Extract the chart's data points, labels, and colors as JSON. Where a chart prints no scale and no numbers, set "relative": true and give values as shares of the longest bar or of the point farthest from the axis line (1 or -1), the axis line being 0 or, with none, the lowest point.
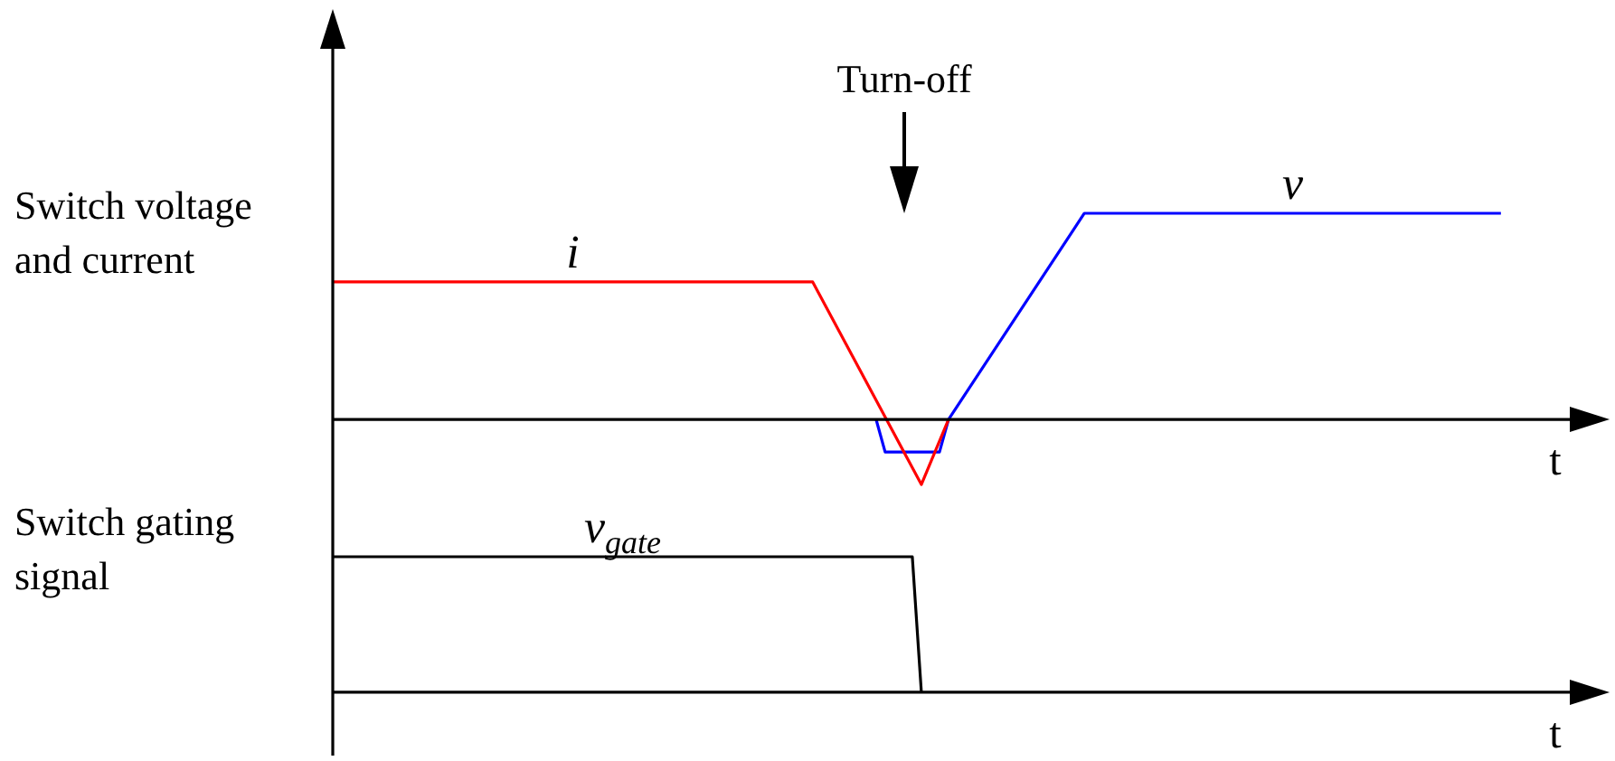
{
  "chart_data": [
    {
      "type": "line",
      "ylabel": "Switch voltage\nand current",
      "xlabel": "t",
      "annotations": [
        "Turn-off"
      ],
      "relative": true,
      "tick_labels": false,
      "grid": false,
      "legend": false,
      "marker": "none",
      "categories": [
        null,
        null,
        null,
        null,
        null,
        null,
        null,
        null,
        null,
        null,
        null,
        null,
        null,
        null,
        null,
        null,
        null,
        null,
        null,
        null,
        null,
        null,
        null,
        null,
        null,
        null,
        null,
        null,
        null,
        null,
        null,
        null,
        null,
        null,
        null,
        null,
        null,
        null,
        null,
        null,
        null,
        null,
        null,
        null,
        null,
        null,
        null,
        null,
        null,
        null,
        null,
        null,
        null,
        null,
        null,
        null,
        null,
        null,
        null,
        null,
        null,
        null,
        null,
        null,
        null,
        null,
        null,
        null,
        null,
        null,
        null,
        null,
        null,
        null,
        null,
        null,
        null,
        null,
        null,
        null,
        null,
        null,
        null,
        null,
        null,
        null,
        null,
        null,
        null,
        null,
        null,
        null,
        null,
        null,
        null,
        null,
        null,
        null,
        null,
        null,
        null,
        null,
        null,
        null,
        null,
        null,
        null,
        null,
        null,
        null,
        null,
        null,
        null,
        null,
        null,
        null,
        null,
        null,
        null,
        null,
        null,
        null,
        null,
        null,
        null,
        null,
        null,
        null,
        null,
        null,
        null,
        null,
        null,
        null,
        null,
        null,
        null,
        null,
        null,
        null,
        null,
        null
      ],
      "series": [
        {
          "name": "i",
          "color": "#ff0000",
          "values": [
            0.667,
            null,
            null,
            null,
            null,
            null,
            null,
            null,
            null,
            null,
            null,
            null,
            null,
            null,
            null,
            null,
            null,
            null,
            null,
            null,
            null,
            null,
            null,
            null,
            null,
            null,
            null,
            null,
            null,
            null,
            null,
            null,
            null,
            null,
            null,
            null,
            null,
            null,
            null,
            null,
            null,
            null,
            null,
            null,
            null,
            null,
            null,
            null,
            null,
            null,
            null,
            null,
            null,
            0.667,
            null,
            null,
            null,
            null,
            null,
            null,
            null,
            null,
            null,
            null,
            null,
            -0.316,
            null,
            null,
            0,
            null,
            null,
            null,
            null,
            null,
            null,
            null,
            null,
            null,
            null,
            null,
            null,
            null,
            null,
            null,
            null,
            null,
            null,
            null,
            null,
            null,
            null,
            null,
            null,
            null,
            null,
            null,
            null,
            null,
            null,
            null,
            null,
            null,
            null,
            null,
            null,
            null,
            null,
            null,
            null,
            null,
            null,
            null,
            null,
            null,
            null,
            null,
            null,
            null,
            null,
            null,
            null,
            null,
            null,
            null,
            null,
            null,
            null,
            null,
            null,
            null,
            null,
            null,
            null,
            null,
            null,
            null,
            null,
            null,
            null,
            null,
            null,
            null
          ]
        },
        {
          "name": "v",
          "color": "#0000ff",
          "values": [
            null,
            null,
            null,
            null,
            null,
            null,
            null,
            null,
            null,
            null,
            null,
            null,
            null,
            null,
            null,
            null,
            null,
            null,
            null,
            null,
            null,
            null,
            null,
            null,
            null,
            null,
            null,
            null,
            null,
            null,
            null,
            null,
            null,
            null,
            null,
            null,
            null,
            null,
            null,
            null,
            null,
            null,
            null,
            null,
            null,
            null,
            null,
            null,
            null,
            null,
            null,
            null,
            null,
            null,
            null,
            null,
            null,
            null,
            null,
            null,
            0,
            -0.158,
            null,
            null,
            null,
            null,
            null,
            -0.158,
            0,
            null,
            null,
            null,
            null,
            null,
            null,
            null,
            null,
            null,
            null,
            null,
            null,
            null,
            null,
            1,
            null,
            null,
            null,
            null,
            null,
            null,
            null,
            null,
            null,
            null,
            null,
            null,
            null,
            null,
            null,
            null,
            null,
            null,
            null,
            null,
            null,
            null,
            null,
            null,
            null,
            null,
            null,
            null,
            null,
            null,
            null,
            null,
            null,
            null,
            null,
            null,
            null,
            null,
            null,
            null,
            null,
            null,
            null,
            null,
            null,
            1,
            null,
            null,
            null,
            null,
            null,
            null,
            null,
            null,
            null,
            null,
            null,
            null
          ]
        }
      ]
    },
    {
      "type": "line",
      "ylabel": "Switch gating\nsignal",
      "xlabel": "t",
      "relative": true,
      "tick_labels": false,
      "grid": false,
      "legend": false,
      "marker": "none",
      "categories": [
        null,
        null,
        null,
        null,
        null,
        null,
        null,
        null,
        null,
        null,
        null,
        null,
        null,
        null,
        null,
        null,
        null,
        null,
        null,
        null,
        null,
        null,
        null,
        null,
        null,
        null,
        null,
        null,
        null,
        null,
        null,
        null,
        null,
        null,
        null,
        null,
        null,
        null,
        null,
        null,
        null,
        null,
        null,
        null,
        null,
        null,
        null,
        null,
        null,
        null,
        null,
        null,
        null,
        null,
        null,
        null,
        null,
        null,
        null,
        null,
        null,
        null,
        null,
        null,
        null,
        null,
        null,
        null,
        null,
        null,
        null,
        null,
        null,
        null,
        null,
        null,
        null,
        null,
        null,
        null,
        null,
        null,
        null,
        null,
        null,
        null,
        null,
        null,
        null,
        null,
        null,
        null,
        null,
        null,
        null,
        null,
        null,
        null,
        null,
        null,
        null,
        null,
        null,
        null,
        null,
        null,
        null,
        null,
        null,
        null,
        null,
        null,
        null,
        null,
        null,
        null,
        null,
        null,
        null,
        null,
        null,
        null,
        null,
        null,
        null,
        null,
        null,
        null,
        null,
        null,
        null,
        null,
        null,
        null,
        null,
        null,
        null,
        null,
        null,
        null,
        null,
        null
      ],
      "series": [
        {
          "name": "v$_{gate}$",
          "color": "#000000",
          "values": [
            1,
            null,
            null,
            null,
            null,
            null,
            null,
            null,
            null,
            null,
            null,
            null,
            null,
            null,
            null,
            null,
            null,
            null,
            null,
            null,
            null,
            null,
            null,
            null,
            null,
            null,
            null,
            null,
            null,
            null,
            null,
            null,
            null,
            null,
            null,
            null,
            null,
            null,
            null,
            null,
            null,
            null,
            null,
            null,
            null,
            null,
            null,
            null,
            null,
            null,
            null,
            null,
            null,
            null,
            null,
            null,
            null,
            null,
            null,
            null,
            null,
            null,
            null,
            null,
            1,
            0,
            null,
            null,
            null,
            null,
            null,
            null,
            null,
            null,
            null,
            null,
            null,
            null,
            null,
            null,
            null,
            null,
            null,
            null,
            null,
            null,
            null,
            null,
            null,
            null,
            null,
            null,
            null,
            null,
            null,
            null,
            null,
            null,
            null,
            null,
            null,
            null,
            null,
            null,
            null,
            null,
            null,
            null,
            null,
            null,
            null,
            null,
            null,
            null,
            null,
            null,
            null,
            null,
            null,
            null,
            null,
            null,
            null,
            null,
            null,
            null,
            null,
            null,
            null,
            null,
            null,
            null,
            null,
            null,
            null,
            null,
            null,
            null,
            null,
            null,
            null,
            null
          ]
        }
      ]
    }
  ]
}
